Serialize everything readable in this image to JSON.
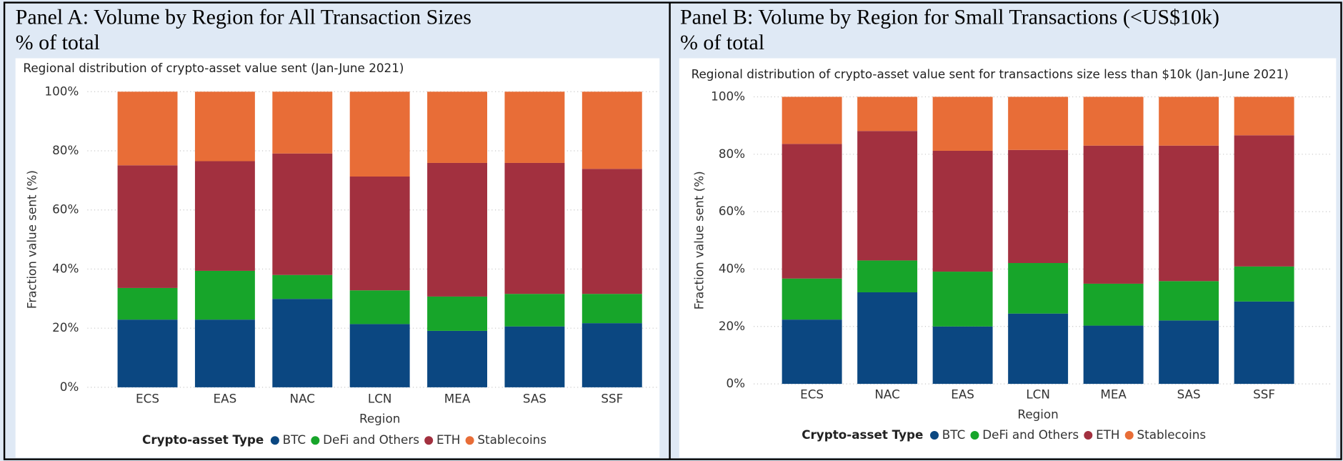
{
  "chart_data": [
    {
      "type": "bar",
      "stacked": true,
      "panel_title": "Panel A: Volume by Region for All Transaction Sizes",
      "subtitle": "% of total",
      "title": "Regional distribution of crypto-asset value sent (Jan-June 2021)",
      "xlabel": "Region",
      "ylabel": "Fraction value sent (%)",
      "legend_title": "Crypto-asset Type",
      "categories": [
        "ECS",
        "EAS",
        "NAC",
        "LCN",
        "MEA",
        "SAS",
        "SSF"
      ],
      "series": [
        {
          "name": "BTC",
          "color": "#0b4781",
          "values": [
            22.9,
            22.9,
            29.9,
            21.4,
            19.1,
            20.6,
            21.7
          ]
        },
        {
          "name": "DeFi and Others",
          "color": "#17a52a",
          "values": [
            10.7,
            16.5,
            8.1,
            11.4,
            11.6,
            11.0,
            9.9
          ]
        },
        {
          "name": "ETH",
          "color": "#a2303f",
          "values": [
            41.5,
            37.1,
            41.1,
            38.5,
            45.2,
            44.3,
            42.3
          ]
        },
        {
          "name": "Stablecoins",
          "color": "#e86d37",
          "values": [
            24.9,
            23.5,
            20.9,
            28.7,
            24.1,
            24.1,
            26.1
          ]
        }
      ],
      "ylim": [
        0,
        100
      ],
      "yticks": [
        {
          "value": 0,
          "label": "0%"
        },
        {
          "value": 20,
          "label": "20%"
        },
        {
          "value": 40,
          "label": "40%"
        },
        {
          "value": 60,
          "label": "60%"
        },
        {
          "value": 80,
          "label": "80%"
        },
        {
          "value": 100,
          "label": "100%"
        }
      ],
      "grid": true
    },
    {
      "type": "bar",
      "stacked": true,
      "panel_title": "Panel B: Volume by Region for Small Transactions (<US$10k)",
      "subtitle": "% of total",
      "title": "Regional distribution of crypto-asset value sent for transactions size less than $10k (Jan-June 2021)",
      "xlabel": "Region",
      "ylabel": "Fraction value sent (%)",
      "legend_title": "Crypto-asset Type",
      "categories": [
        "ECS",
        "NAC",
        "EAS",
        "LCN",
        "MEA",
        "SAS",
        "SSF"
      ],
      "series": [
        {
          "name": "BTC",
          "color": "#0b4781",
          "values": [
            22.4,
            31.9,
            20.0,
            24.5,
            20.3,
            22.1,
            28.7
          ]
        },
        {
          "name": "DeFi and Others",
          "color": "#17a52a",
          "values": [
            14.3,
            11.1,
            19.1,
            17.6,
            14.6,
            13.7,
            12.2
          ]
        },
        {
          "name": "ETH",
          "color": "#a2303f",
          "values": [
            46.9,
            45.1,
            42.1,
            39.4,
            48.1,
            47.2,
            45.7
          ]
        },
        {
          "name": "Stablecoins",
          "color": "#e86d37",
          "values": [
            16.4,
            11.9,
            18.8,
            18.5,
            17.0,
            17.0,
            13.4
          ]
        }
      ],
      "ylim": [
        0,
        100
      ],
      "yticks": [
        {
          "value": 0,
          "label": "0%"
        },
        {
          "value": 20,
          "label": "20%"
        },
        {
          "value": 40,
          "label": "40%"
        },
        {
          "value": 60,
          "label": "60%"
        },
        {
          "value": 80,
          "label": "80%"
        },
        {
          "value": 100,
          "label": "100%"
        }
      ],
      "grid": true
    }
  ]
}
